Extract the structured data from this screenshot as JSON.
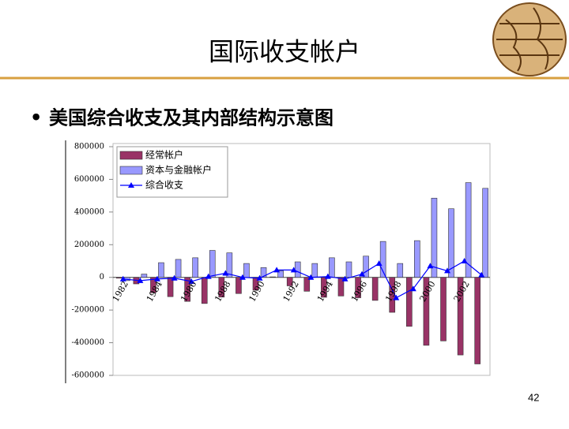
{
  "slide": {
    "title": "国际收支帐户",
    "bullet": "美国综合收支及其内部结构示意图",
    "page_number": "42"
  },
  "chart_data": {
    "type": "bar",
    "categories": [
      "1982",
      null,
      "1984",
      null,
      "1986",
      null,
      "1988",
      null,
      "1990",
      null,
      "1992",
      null,
      "1994",
      null,
      "1996",
      null,
      "1998",
      null,
      "2000",
      null,
      "2002",
      null
    ],
    "series": [
      {
        "name": "经常帐户",
        "color": "#993366",
        "values": [
          -5000,
          -40000,
          -95000,
          -118000,
          -147000,
          -160000,
          -121000,
          -99000,
          -79000,
          3000,
          -52000,
          -85000,
          -122000,
          -114000,
          -125000,
          -141000,
          -214000,
          -300000,
          -416000,
          -389000,
          -475000,
          -530000
        ]
      },
      {
        "name": "资本与金融帐户",
        "color": "#9999ff",
        "values": [
          -20000,
          20000,
          90000,
          110000,
          120000,
          165000,
          150000,
          85000,
          60000,
          40000,
          95000,
          85000,
          120000,
          95000,
          130000,
          220000,
          85000,
          225000,
          485000,
          420000,
          580000,
          545000
        ]
      },
      {
        "name": "综合收支",
        "color": "#0000ff",
        "type": "line",
        "values": [
          -10000,
          -20000,
          -10000,
          -5000,
          -25000,
          5000,
          25000,
          0,
          -5000,
          45000,
          45000,
          0,
          5000,
          -10000,
          20000,
          85000,
          -125000,
          -70000,
          70000,
          40000,
          100000,
          15000
        ]
      }
    ],
    "ylim": [
      -600000,
      800000
    ],
    "yticks": [
      -600000,
      -400000,
      -200000,
      0,
      200000,
      400000,
      600000,
      800000
    ],
    "legend": "upper left"
  }
}
